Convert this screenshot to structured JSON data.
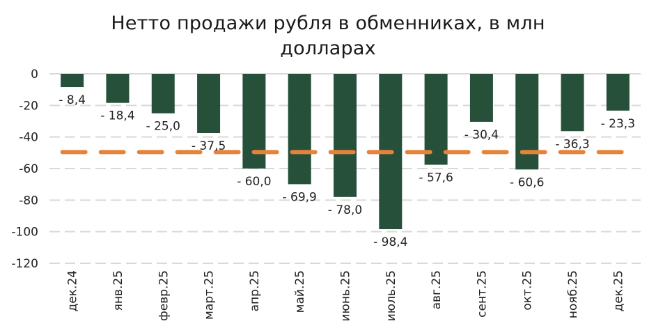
{
  "title_line1": "Нетто продажи рубля в обменниках, в млн",
  "title_line2": "долларах",
  "colors": {
    "bar": "#265039",
    "average_line": "#E5833B",
    "grid": "#D9D9D9",
    "text": "#222222"
  },
  "chart_data": {
    "type": "bar",
    "title": "Нетто продажи рубля в обменниках, в млн долларах",
    "xlabel": "",
    "ylabel": "",
    "categories": [
      "дек.24",
      "янв.25",
      "февр.25",
      "март.25",
      "апр.25",
      "май.25",
      "июнь.25",
      "июль.25",
      "авг.25",
      "сент.25",
      "окт.25",
      "нояб.25",
      "дек.25"
    ],
    "values": [
      -8.4,
      -18.4,
      -25.0,
      -37.5,
      -60.0,
      -69.9,
      -78.0,
      -98.4,
      -57.6,
      -30.4,
      -60.6,
      -36.3,
      -23.3
    ],
    "data_labels": [
      "- 8,4",
      "- 18,4",
      "- 25,0",
      "- 37,5",
      "- 60,0",
      "- 69,9",
      "- 78,0",
      "- 98,4",
      "- 57,6",
      "- 30,4",
      "- 60,6",
      "- 36,3",
      "- 23,3"
    ],
    "reference_line": {
      "style": "dashed",
      "color": "#E5833B",
      "value": -49.6
    },
    "ylim": [
      -120,
      0
    ],
    "yticks": [
      0,
      -20,
      -40,
      -60,
      -80,
      -100,
      -120
    ],
    "ytick_labels": [
      "0",
      "-20",
      "-40",
      "-60",
      "-80",
      "-100",
      "-120"
    ],
    "grid": true,
    "legend": null
  }
}
